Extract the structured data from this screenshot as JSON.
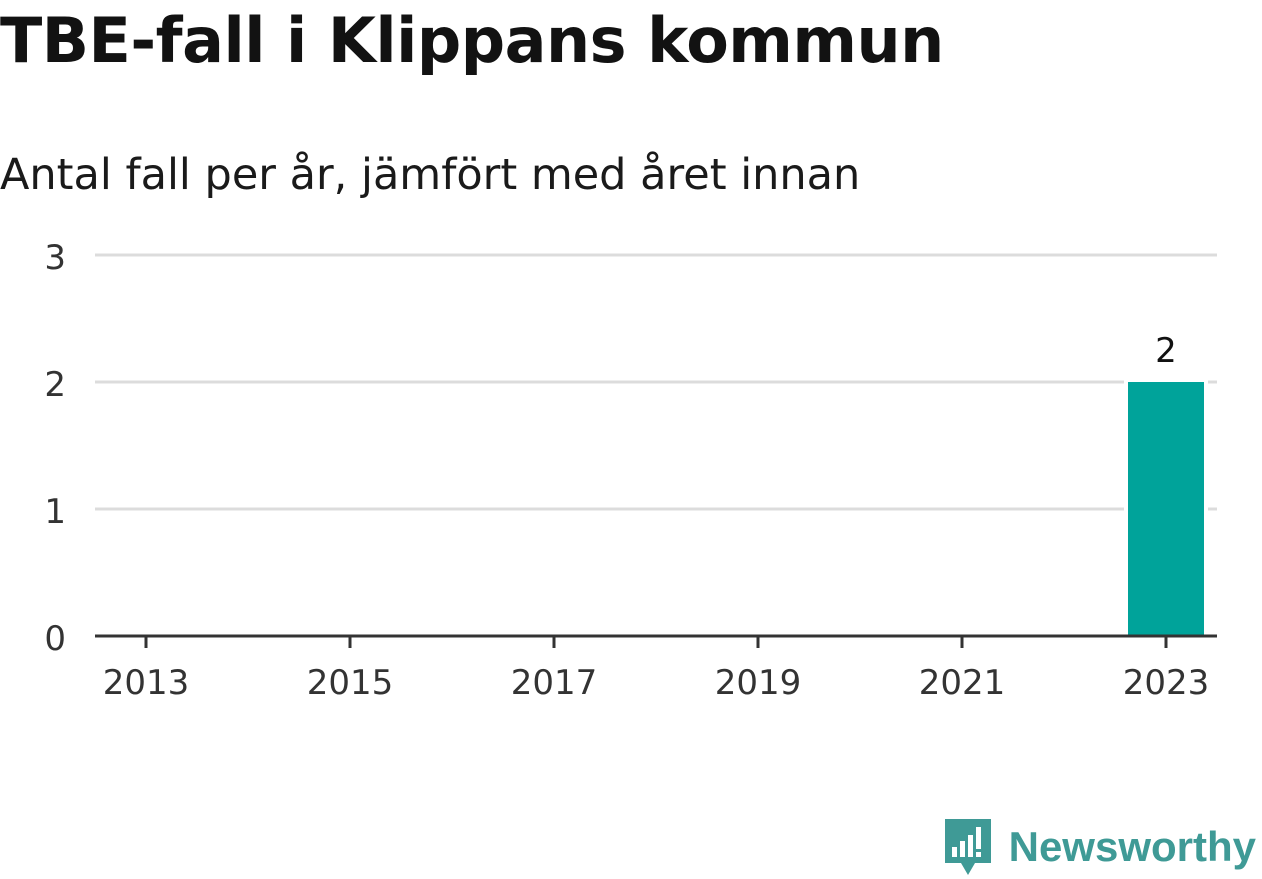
{
  "chart_data": {
    "type": "bar",
    "title": "TBE-fall i Klippans kommun",
    "subtitle": "Antal fall per år, jämfört med året innan",
    "x": [
      2013,
      2014,
      2015,
      2016,
      2017,
      2018,
      2019,
      2020,
      2021,
      2022,
      2023
    ],
    "values": [
      0,
      0,
      0,
      0,
      0,
      0,
      0,
      0,
      0,
      0,
      2
    ],
    "x_tick_labels": [
      "2013",
      "2015",
      "2017",
      "2019",
      "2021",
      "2023"
    ],
    "y_ticks": [
      0,
      1,
      2,
      3
    ],
    "ylim": [
      0,
      3
    ],
    "data_labels": [
      {
        "x": 2023,
        "label": "2"
      }
    ],
    "bar_color": "#00a39a",
    "grid": true,
    "legend": "none"
  },
  "branding": {
    "logo_text": "Newsworthy",
    "logo_color": "#3f9a96"
  }
}
